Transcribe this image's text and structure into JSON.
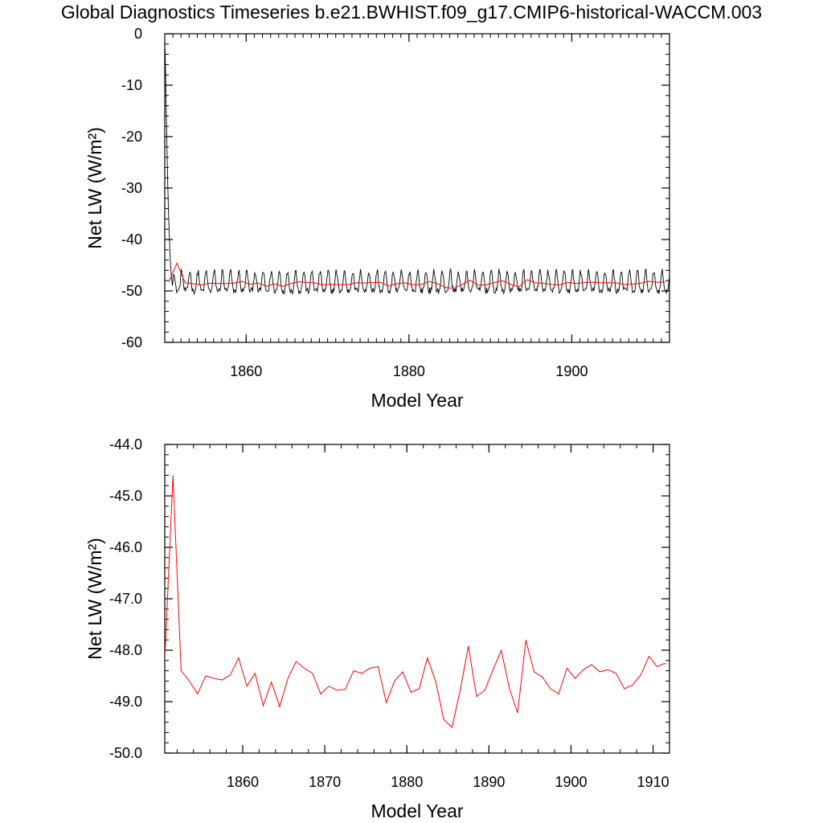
{
  "title": "Global Diagnostics Timeseries b.e21.BWHIST.f09_g17.CMIP6-historical-WACCM.003",
  "colors": {
    "monthly": "#000000",
    "annual": "#ff0000",
    "axes": "#000000"
  },
  "chart_data": [
    {
      "type": "line",
      "xlabel": "Model Year",
      "ylabel": "Net LW (W/m²)",
      "xlim": [
        1850,
        1912
      ],
      "ylim": [
        -60,
        0
      ],
      "x_ticks": [
        1860,
        1880,
        1900
      ],
      "y_ticks": [
        0,
        -10,
        -20,
        -30,
        -40,
        -50,
        -60
      ],
      "series": [
        {
          "kind": "monthly",
          "spinup": [
            [
              1850.04,
              -3
            ],
            [
              1850.2,
              -16
            ],
            [
              1850.35,
              -28
            ],
            [
              1850.5,
              -37
            ],
            [
              1850.65,
              -43
            ],
            [
              1850.8,
              -47
            ],
            [
              1850.96,
              -49
            ]
          ],
          "mean": -48.6,
          "amplitude": 1.9,
          "noise": 0.6
        },
        {
          "kind": "annual",
          "x": [
            1850.5,
            1851.5,
            1852.5,
            1853.5,
            1854.5,
            1855.5,
            1856.5,
            1857.5,
            1858.5,
            1859.5,
            1860.5,
            1861.5,
            1862.5,
            1863.5,
            1864.5,
            1865.5,
            1866.5,
            1867.5,
            1868.5,
            1869.5,
            1870.5,
            1871.5,
            1872.5,
            1873.5,
            1874.5,
            1875.5,
            1876.5,
            1877.5,
            1878.5,
            1879.5,
            1880.5,
            1881.5,
            1882.5,
            1883.5,
            1884.5,
            1885.5,
            1886.5,
            1887.5,
            1888.5,
            1889.5,
            1890.5,
            1891.5,
            1892.5,
            1893.5,
            1894.5,
            1895.5,
            1896.5,
            1897.5,
            1898.5,
            1899.5,
            1900.5,
            1901.5,
            1902.5,
            1903.5,
            1904.5,
            1905.5,
            1906.5,
            1907.5,
            1908.5,
            1909.5,
            1910.5,
            1911.5
          ],
          "y": [
            -48.2,
            -44.6,
            -48.4,
            -48.6,
            -48.85,
            -48.5,
            -48.55,
            -48.58,
            -48.48,
            -48.15,
            -48.7,
            -48.45,
            -49.08,
            -48.62,
            -49.1,
            -48.55,
            -48.22,
            -48.35,
            -48.45,
            -48.85,
            -48.7,
            -48.78,
            -48.76,
            -48.4,
            -48.45,
            -48.35,
            -48.32,
            -49.02,
            -48.6,
            -48.42,
            -48.82,
            -48.75,
            -48.15,
            -48.6,
            -49.35,
            -49.5,
            -48.78,
            -47.92,
            -48.9,
            -48.78,
            -48.38,
            -48.0,
            -48.75,
            -49.22,
            -47.8,
            -48.42,
            -48.52,
            -48.75,
            -48.85,
            -48.35,
            -48.55,
            -48.38,
            -48.28,
            -48.42,
            -48.38,
            -48.45,
            -48.75,
            -48.68,
            -48.48,
            -48.12,
            -48.32,
            -48.25
          ]
        }
      ]
    },
    {
      "type": "line",
      "xlabel": "Model Year",
      "ylabel": "Net LW (W/m²)",
      "xlim": [
        1850.5,
        1912
      ],
      "ylim": [
        -50,
        -44
      ],
      "x_ticks": [
        1860,
        1870,
        1880,
        1890,
        1900,
        1910
      ],
      "y_ticks": [
        -44.0,
        -45.0,
        -46.0,
        -47.0,
        -48.0,
        -49.0,
        -50.0
      ],
      "series": [
        {
          "kind": "annual",
          "x": [
            1850.5,
            1851.5,
            1852.5,
            1853.5,
            1854.5,
            1855.5,
            1856.5,
            1857.5,
            1858.5,
            1859.5,
            1860.5,
            1861.5,
            1862.5,
            1863.5,
            1864.5,
            1865.5,
            1866.5,
            1867.5,
            1868.5,
            1869.5,
            1870.5,
            1871.5,
            1872.5,
            1873.5,
            1874.5,
            1875.5,
            1876.5,
            1877.5,
            1878.5,
            1879.5,
            1880.5,
            1881.5,
            1882.5,
            1883.5,
            1884.5,
            1885.5,
            1886.5,
            1887.5,
            1888.5,
            1889.5,
            1890.5,
            1891.5,
            1892.5,
            1893.5,
            1894.5,
            1895.5,
            1896.5,
            1897.5,
            1898.5,
            1899.5,
            1900.5,
            1901.5,
            1902.5,
            1903.5,
            1904.5,
            1905.5,
            1906.5,
            1907.5,
            1908.5,
            1909.5,
            1910.5,
            1911.5
          ],
          "y": [
            -48.2,
            -44.6,
            -48.4,
            -48.6,
            -48.85,
            -48.5,
            -48.55,
            -48.58,
            -48.48,
            -48.15,
            -48.7,
            -48.45,
            -49.08,
            -48.62,
            -49.1,
            -48.55,
            -48.22,
            -48.35,
            -48.45,
            -48.85,
            -48.7,
            -48.78,
            -48.76,
            -48.4,
            -48.45,
            -48.35,
            -48.32,
            -49.02,
            -48.6,
            -48.42,
            -48.82,
            -48.75,
            -48.15,
            -48.6,
            -49.35,
            -49.5,
            -48.78,
            -47.92,
            -48.9,
            -48.78,
            -48.38,
            -48.0,
            -48.75,
            -49.22,
            -47.8,
            -48.42,
            -48.52,
            -48.75,
            -48.85,
            -48.35,
            -48.55,
            -48.38,
            -48.28,
            -48.42,
            -48.38,
            -48.45,
            -48.75,
            -48.68,
            -48.48,
            -48.12,
            -48.32,
            -48.25
          ]
        }
      ]
    }
  ]
}
